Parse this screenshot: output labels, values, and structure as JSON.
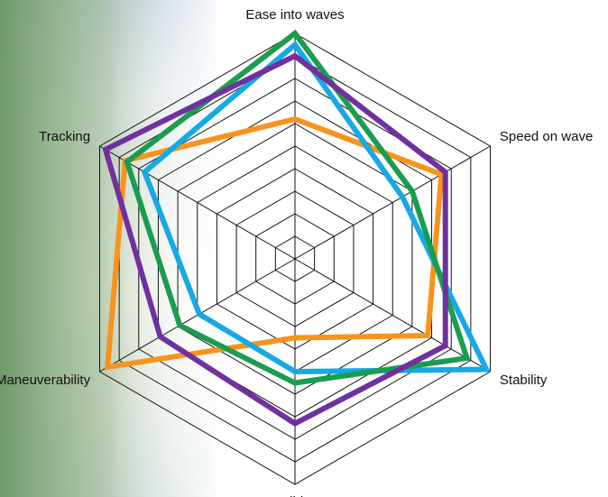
{
  "chart_data": {
    "type": "radar",
    "categories": [
      "Ease into waves",
      "Speed on wave",
      "Stability",
      "Glide",
      "Maneuverability",
      "Tracking"
    ],
    "rlim": [
      0,
      10
    ],
    "rticks": [
      1,
      2,
      3,
      4,
      5,
      6,
      7,
      8,
      9,
      10
    ],
    "grid": true,
    "series": [
      {
        "color": "#f7941d",
        "values": [
          6.2,
          7.5,
          6.8,
          3.5,
          9.6,
          8.7
        ]
      },
      {
        "color": "#16a9e5",
        "values": [
          9.5,
          5.5,
          9.8,
          5.0,
          4.9,
          7.7
        ]
      },
      {
        "color": "#1a9d4e",
        "values": [
          10,
          6,
          8.8,
          5.5,
          5.9,
          8.6
        ]
      },
      {
        "color": "#7030a0",
        "values": [
          9,
          7.7,
          7.7,
          7.3,
          6.9,
          9.7
        ]
      }
    ]
  }
}
